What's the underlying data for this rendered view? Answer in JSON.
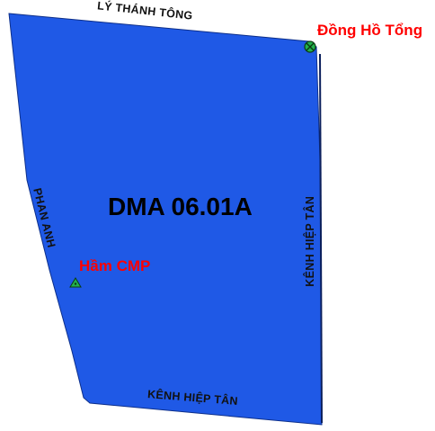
{
  "zone": {
    "name": "DMA 06.01A",
    "fill_color": "#1f59e6",
    "edge_color": "#0d2f8a"
  },
  "streets": {
    "top": "LÝ THÁNH TÔNG",
    "left": "PHAN ANH",
    "right": "KÊNH HIỆP TÂN",
    "bottom": "KÊNH HIỆP TÂN"
  },
  "markers": {
    "meter": {
      "label": "Đồng Hồ Tổng",
      "icon": "master-meter-icon",
      "color": "#22b14c"
    },
    "cmp": {
      "label": "Hầm CMP",
      "icon": "cmp-chamber-icon",
      "color": "#22b14c"
    }
  },
  "label_color": "#ff0000"
}
